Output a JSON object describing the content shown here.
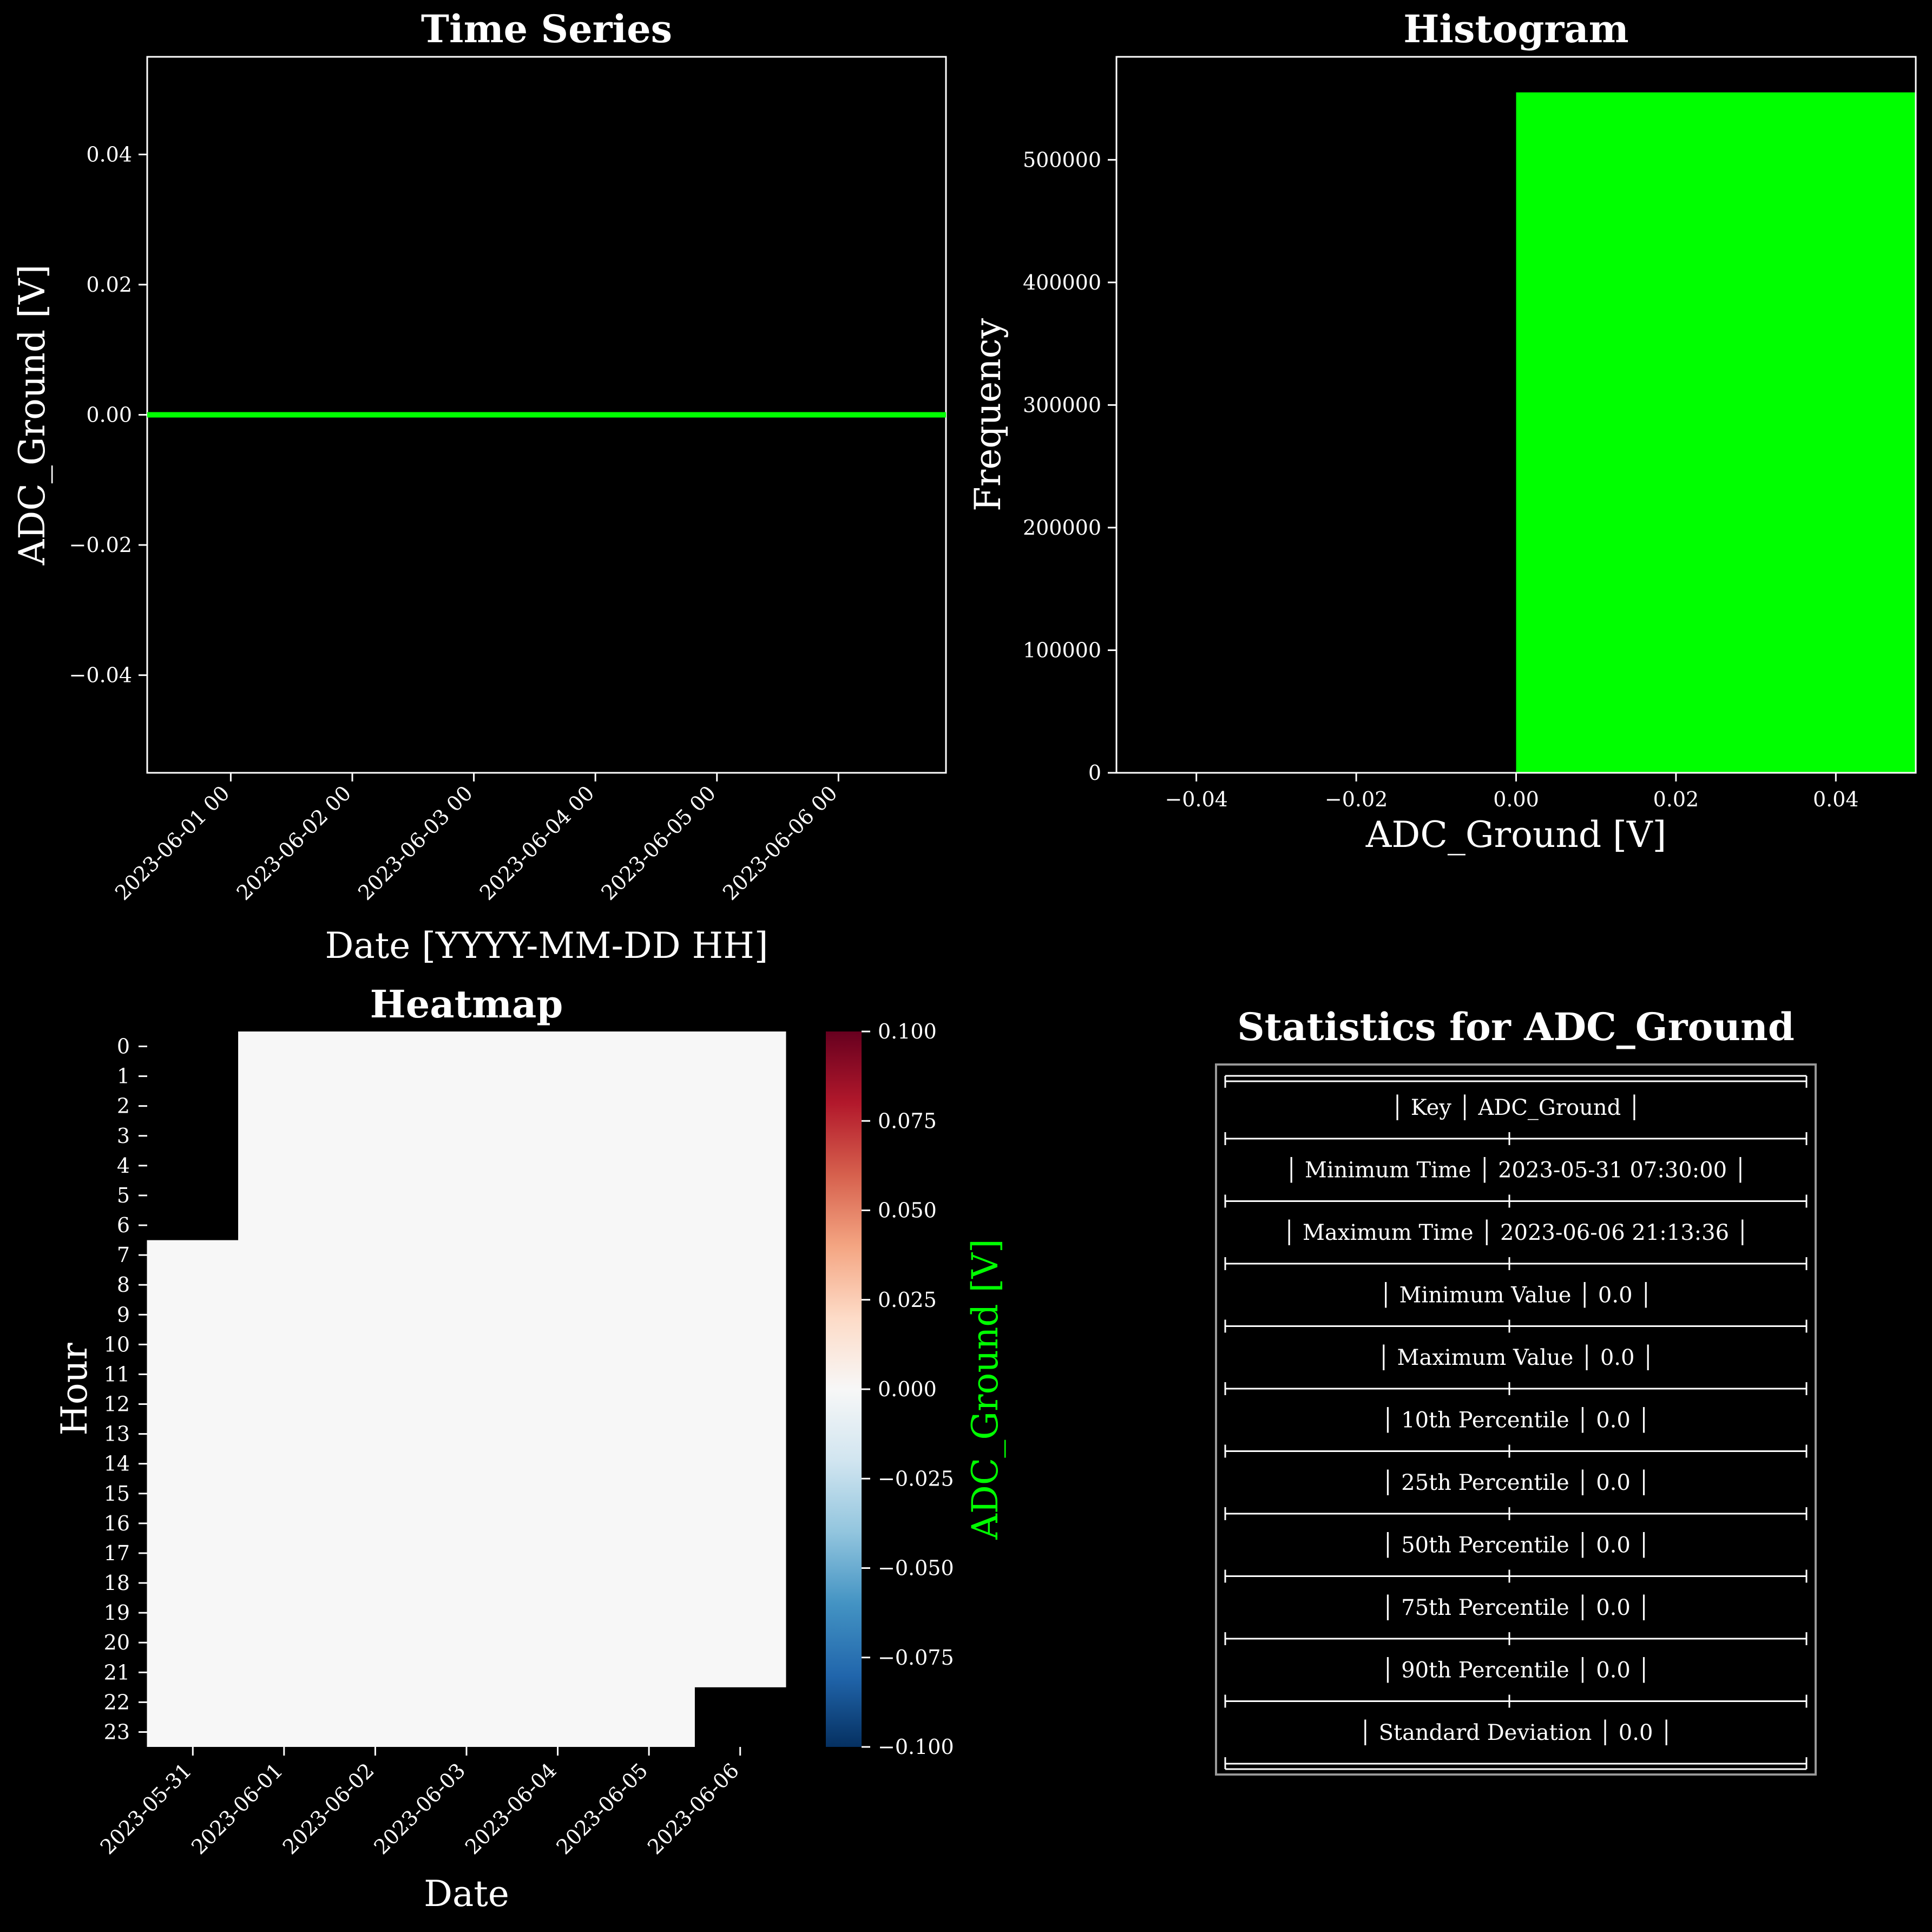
{
  "colors": {
    "background": "#000000",
    "foreground": "#ffffff",
    "series": "#00ff00",
    "heat_cell": "#f7f7f7",
    "colorbar_label": "#00ff00"
  },
  "chart_data": [
    {
      "type": "line",
      "title": "Time Series",
      "xlabel": "Date [YYYY-MM-DD HH]",
      "ylabel": "ADC_Ground [V]",
      "xlim": [
        "2023-05-31 07:30:00",
        "2023-06-06 21:13:36"
      ],
      "ylim": [
        -0.055,
        0.055
      ],
      "xticks": [
        {
          "value": "2023-06-01 00:00:00",
          "label": "2023-06-01 00"
        },
        {
          "value": "2023-06-02 00:00:00",
          "label": "2023-06-02 00"
        },
        {
          "value": "2023-06-03 00:00:00",
          "label": "2023-06-03 00"
        },
        {
          "value": "2023-06-04 00:00:00",
          "label": "2023-06-04 00"
        },
        {
          "value": "2023-06-05 00:00:00",
          "label": "2023-06-05 00"
        },
        {
          "value": "2023-06-06 00:00:00",
          "label": "2023-06-06 00"
        }
      ],
      "yticks": [
        {
          "value": 0.04,
          "label": "0.04"
        },
        {
          "value": 0.02,
          "label": "0.02"
        },
        {
          "value": 0.0,
          "label": "0.00"
        },
        {
          "value": -0.02,
          "label": "−0.02"
        },
        {
          "value": -0.04,
          "label": "−0.04"
        }
      ],
      "series": [
        {
          "x": [
            "2023-05-31 07:30:00",
            "2023-06-06 21:13:36"
          ],
          "y": [
            0.0,
            0.0
          ]
        }
      ]
    },
    {
      "type": "bar",
      "title": "Histogram",
      "xlabel": "ADC_Ground [V]",
      "ylabel": "Frequency",
      "xlim": [
        -0.05,
        0.05
      ],
      "ylim": [
        0,
        584000
      ],
      "xticks": [
        {
          "value": -0.04,
          "label": "−0.04"
        },
        {
          "value": -0.02,
          "label": "−0.02"
        },
        {
          "value": 0.0,
          "label": "0.00"
        },
        {
          "value": 0.02,
          "label": "0.02"
        },
        {
          "value": 0.04,
          "label": "0.04"
        }
      ],
      "yticks": [
        {
          "value": 0,
          "label": "0"
        },
        {
          "value": 100000,
          "label": "100000"
        },
        {
          "value": 200000,
          "label": "200000"
        },
        {
          "value": 300000,
          "label": "300000"
        },
        {
          "value": 400000,
          "label": "400000"
        },
        {
          "value": 500000,
          "label": "500000"
        }
      ],
      "bins": [
        {
          "x0": 0.0,
          "x1": 0.05,
          "count": 555000
        }
      ]
    },
    {
      "type": "heatmap",
      "title": "Heatmap",
      "xlabel": "Date",
      "ylabel": "Hour",
      "x": [
        "2023-05-31",
        "2023-06-01",
        "2023-06-02",
        "2023-06-03",
        "2023-06-04",
        "2023-06-05",
        "2023-06-06"
      ],
      "y": [
        "0",
        "1",
        "2",
        "3",
        "4",
        "5",
        "6",
        "7",
        "8",
        "9",
        "10",
        "11",
        "12",
        "13",
        "14",
        "15",
        "16",
        "17",
        "18",
        "19",
        "20",
        "21",
        "22",
        "23"
      ],
      "valid_ranges": [
        {
          "date": "2023-05-31",
          "hours": [
            7,
            23
          ]
        },
        {
          "date": "2023-06-01",
          "hours": [
            0,
            23
          ]
        },
        {
          "date": "2023-06-02",
          "hours": [
            0,
            23
          ]
        },
        {
          "date": "2023-06-03",
          "hours": [
            0,
            23
          ]
        },
        {
          "date": "2023-06-04",
          "hours": [
            0,
            23
          ]
        },
        {
          "date": "2023-06-05",
          "hours": [
            0,
            23
          ]
        },
        {
          "date": "2023-06-06",
          "hours": [
            0,
            21
          ]
        }
      ],
      "cell_value": 0.0,
      "colorbar": {
        "label": "ADC_Ground [V]",
        "range": [
          -0.1,
          0.1
        ],
        "ticks": [
          {
            "value": 0.1,
            "label": "0.100"
          },
          {
            "value": 0.075,
            "label": "0.075"
          },
          {
            "value": 0.05,
            "label": "0.050"
          },
          {
            "value": 0.025,
            "label": "0.025"
          },
          {
            "value": 0.0,
            "label": "0.000"
          },
          {
            "value": -0.025,
            "label": "−0.025"
          },
          {
            "value": -0.05,
            "label": "−0.050"
          },
          {
            "value": -0.075,
            "label": "−0.075"
          },
          {
            "value": -0.1,
            "label": "−0.100"
          }
        ]
      }
    },
    {
      "type": "table",
      "title": "Statistics for ADC_Ground",
      "rows": [
        {
          "key": "Key",
          "value": "ADC_Ground"
        },
        {
          "key": "Minimum Time",
          "value": "2023-05-31 07:30:00"
        },
        {
          "key": "Maximum Time",
          "value": "2023-06-06 21:13:36"
        },
        {
          "key": "Minimum Value",
          "value": "0.0"
        },
        {
          "key": "Maximum Value",
          "value": "0.0"
        },
        {
          "key": "10th Percentile",
          "value": "0.0"
        },
        {
          "key": "25th Percentile",
          "value": "0.0"
        },
        {
          "key": "50th Percentile",
          "value": "0.0"
        },
        {
          "key": "75th Percentile",
          "value": "0.0"
        },
        {
          "key": "90th Percentile",
          "value": "0.0"
        },
        {
          "key": "Standard Deviation",
          "value": "0.0"
        }
      ]
    }
  ]
}
